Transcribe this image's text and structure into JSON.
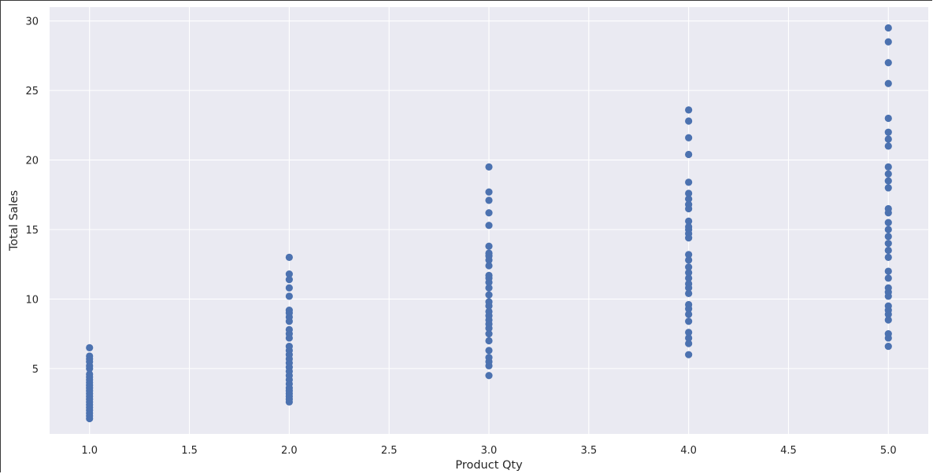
{
  "chart_data": {
    "type": "scatter",
    "title": "",
    "xlabel": "Product Qty",
    "ylabel": "Total Sales",
    "xlim": [
      0.8,
      5.2
    ],
    "ylim": [
      0.3,
      31
    ],
    "xticks": [
      1.0,
      1.5,
      2.0,
      2.5,
      3.0,
      3.5,
      4.0,
      4.5,
      5.0
    ],
    "xtick_labels": [
      "1.0",
      "1.5",
      "2.0",
      "2.5",
      "3.0",
      "3.5",
      "4.0",
      "4.5",
      "5.0"
    ],
    "yticks": [
      5,
      10,
      15,
      20,
      25,
      30
    ],
    "ytick_labels": [
      "5",
      "10",
      "15",
      "20",
      "25",
      "30"
    ],
    "grid": true,
    "style": "seaborn-darkgrid",
    "colors": {
      "background": "#eaeaf2",
      "grid": "#ffffff",
      "point": "#4c72b0"
    },
    "series": [
      {
        "x": 1.0,
        "y": [
          1.4,
          1.6,
          1.8,
          2.0,
          2.2,
          2.4,
          2.6,
          2.8,
          3.0,
          3.2,
          3.4,
          3.6,
          3.8,
          4.0,
          4.2,
          4.4,
          4.6,
          5.0,
          5.2,
          5.5,
          5.7,
          5.9,
          6.5
        ]
      },
      {
        "x": 2.0,
        "y": [
          2.6,
          2.8,
          3.0,
          3.2,
          3.4,
          3.6,
          3.9,
          4.2,
          4.5,
          4.8,
          5.1,
          5.4,
          5.7,
          6.0,
          6.3,
          6.6,
          7.2,
          7.5,
          7.8,
          8.4,
          8.7,
          9.0,
          9.2,
          10.2,
          10.8,
          11.4,
          11.8,
          13.0
        ]
      },
      {
        "x": 3.0,
        "y": [
          4.5,
          5.2,
          5.5,
          5.8,
          6.3,
          7.0,
          7.5,
          7.9,
          8.2,
          8.5,
          8.8,
          9.1,
          9.5,
          9.8,
          10.3,
          10.8,
          11.2,
          11.5,
          11.7,
          12.4,
          12.8,
          13.1,
          13.3,
          13.8,
          15.3,
          16.2,
          17.1,
          17.7,
          19.5
        ]
      },
      {
        "x": 4.0,
        "y": [
          6.0,
          6.8,
          7.2,
          7.6,
          8.4,
          8.9,
          9.3,
          9.6,
          10.4,
          10.8,
          11.1,
          11.5,
          11.9,
          12.3,
          12.8,
          13.2,
          14.4,
          14.7,
          15.0,
          15.2,
          15.6,
          16.5,
          16.8,
          17.2,
          17.6,
          18.4,
          20.4,
          21.6,
          22.8,
          23.6
        ]
      },
      {
        "x": 5.0,
        "y": [
          6.6,
          7.2,
          7.5,
          8.5,
          8.9,
          9.2,
          9.5,
          10.2,
          10.5,
          10.8,
          11.5,
          12.0,
          13.0,
          13.5,
          14.0,
          14.5,
          15.0,
          15.5,
          16.2,
          16.5,
          18.0,
          18.5,
          19.0,
          19.5,
          21.0,
          21.5,
          22.0,
          23.0,
          25.5,
          27.0,
          28.5,
          29.5
        ]
      }
    ]
  }
}
